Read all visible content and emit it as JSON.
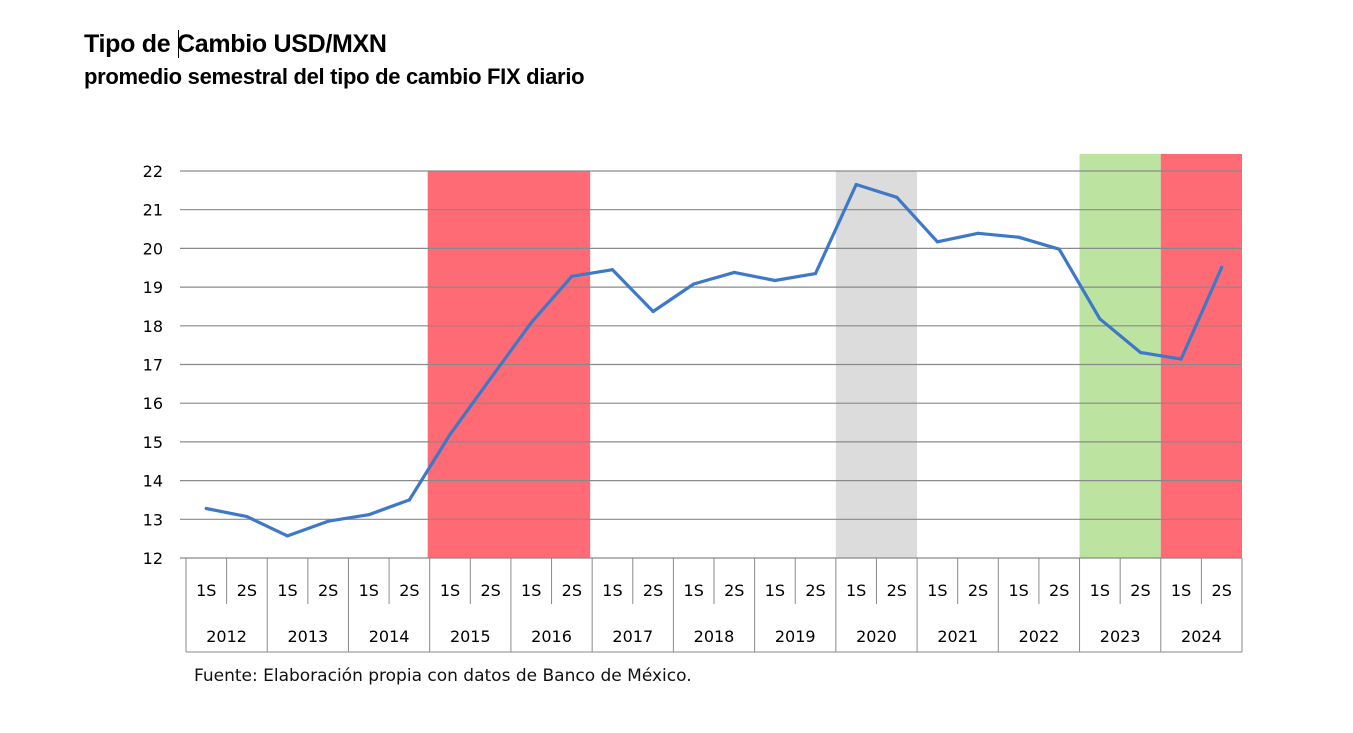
{
  "title": "Tipo de Cambio USD/MXN",
  "subtitle": "promedio semestral del tipo de cambio FIX diario",
  "source": "Fuente: Elaboración propia con datos de Banco de México.",
  "colors": {
    "line": "#3e78c8",
    "band_red": "#ff6b75",
    "band_gray": "#dcdcdc",
    "band_green": "#bde3a0",
    "gridline": "#8a8a8a"
  },
  "chart_data": {
    "type": "line",
    "title": "Tipo de Cambio USD/MXN",
    "subtitle": "promedio semestral del tipo de cambio FIX diario",
    "ylim": [
      12,
      22
    ],
    "yticks": [
      12,
      13,
      14,
      15,
      16,
      17,
      18,
      19,
      20,
      21,
      22
    ],
    "grid": true,
    "years": [
      "2012",
      "2013",
      "2014",
      "2015",
      "2016",
      "2017",
      "2018",
      "2019",
      "2020",
      "2021",
      "2022",
      "2023",
      "2024"
    ],
    "semesters": [
      "1S",
      "2S"
    ],
    "series": [
      {
        "values": [
          13.28,
          13.07,
          12.57,
          12.95,
          13.12,
          13.5,
          15.19,
          16.64,
          18.08,
          19.28,
          19.45,
          18.37,
          19.08,
          19.38,
          19.17,
          19.35,
          21.65,
          21.32,
          20.17,
          20.39,
          20.29,
          19.98,
          18.18,
          17.31,
          17.14,
          19.51
        ]
      }
    ],
    "shaded_periods": [
      {
        "from_year": "2015",
        "to_year": "2016",
        "color": "#ff6b75"
      },
      {
        "from_year": "2020",
        "to_year": "2020",
        "color": "#dcdcdc"
      },
      {
        "from_year": "2023",
        "to_year": "2023",
        "color": "#bde3a0"
      },
      {
        "from_year": "2024",
        "to_year": "2024",
        "color": "#ff6b75"
      }
    ]
  }
}
